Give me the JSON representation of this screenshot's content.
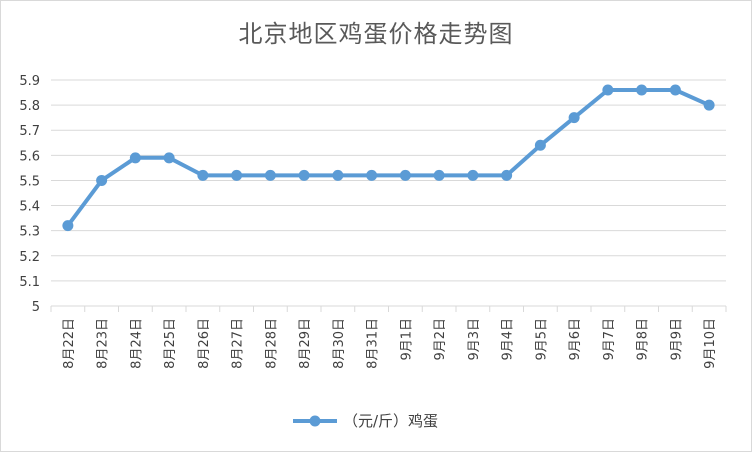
{
  "chart_data": {
    "type": "line",
    "title": "北京地区鸡蛋价格走势图",
    "categories": [
      "8月22日",
      "8月23日",
      "8月24日",
      "8月25日",
      "8月26日",
      "8月27日",
      "8月28日",
      "8月29日",
      "8月30日",
      "8月31日",
      "9月1日",
      "9月2日",
      "9月3日",
      "9月4日",
      "9月5日",
      "9月6日",
      "9月7日",
      "9月8日",
      "9月9日",
      "9月10日"
    ],
    "series": [
      {
        "name": "（元/斤）鸡蛋",
        "values": [
          5.32,
          5.5,
          5.59,
          5.59,
          5.52,
          5.52,
          5.52,
          5.52,
          5.52,
          5.52,
          5.52,
          5.52,
          5.52,
          5.52,
          5.64,
          5.75,
          5.86,
          5.86,
          5.86,
          5.8
        ]
      }
    ],
    "yticks": [
      "5",
      "5.1",
      "5.2",
      "5.3",
      "5.4",
      "5.5",
      "5.6",
      "5.7",
      "5.8",
      "5.9"
    ],
    "ylim": [
      5,
      5.9
    ],
    "grid": true,
    "legend_position": "bottom",
    "color": "#5b9bd5",
    "grid_color": "#d9d9d9"
  }
}
